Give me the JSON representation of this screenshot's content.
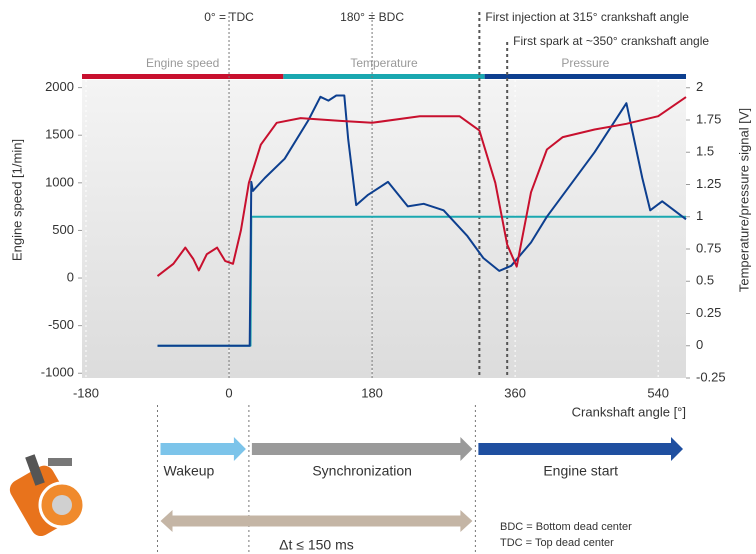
{
  "chart_data": {
    "type": "line",
    "xlabel": "Crankshaft angle [°]",
    "ylabel": "Engine speed [1/min]",
    "y2label": "Temperature/pressure signal [V]",
    "xlim": [
      -185,
      575
    ],
    "xticks": [
      -180,
      0,
      180,
      360,
      540
    ],
    "ylim": [
      -1050,
      2080
    ],
    "yticks": [
      2000,
      1500,
      1000,
      500,
      0,
      -500,
      -1000
    ],
    "y2lim": [
      -0.25,
      2.06
    ],
    "y2ticks": [
      2,
      1.75,
      1.5,
      1.25,
      1,
      0.75,
      0.5,
      0.25,
      0,
      -0.25
    ],
    "grid": true,
    "series": [
      {
        "name": "Engine speed",
        "color": "#c8102e",
        "axis": "y",
        "x": [
          -90,
          -70,
          -55,
          -45,
          -38,
          -28,
          -15,
          -5,
          5,
          15,
          25,
          40,
          60,
          90,
          140,
          180,
          240,
          290,
          315,
          335,
          350,
          362,
          380,
          400,
          420,
          460,
          500,
          540,
          575
        ],
        "values": [
          20,
          150,
          320,
          200,
          80,
          250,
          320,
          180,
          150,
          500,
          1000,
          1400,
          1630,
          1680,
          1650,
          1630,
          1700,
          1700,
          1550,
          1000,
          350,
          120,
          900,
          1350,
          1480,
          1560,
          1620,
          1700,
          1900
        ]
      },
      {
        "name": "Temperature",
        "color": "#1aa8b0",
        "axis": "y2",
        "x": [
          -90,
          27,
          28,
          575
        ],
        "values": [
          0,
          0,
          1,
          1
        ]
      },
      {
        "name": "Pressure",
        "color": "#0d3f8f",
        "axis": "y2",
        "x": [
          -90,
          26,
          28,
          30,
          45,
          70,
          100,
          115,
          125,
          135,
          145,
          150,
          160,
          175,
          200,
          225,
          245,
          270,
          300,
          320,
          340,
          355,
          380,
          400,
          460,
          500,
          520,
          530,
          545,
          560,
          575
        ],
        "values": [
          0,
          0,
          1.27,
          1.2,
          1.3,
          1.45,
          1.75,
          1.93,
          1.9,
          1.94,
          1.94,
          1.6,
          1.09,
          1.17,
          1.27,
          1.08,
          1.1,
          1.05,
          0.85,
          0.68,
          0.58,
          0.62,
          0.8,
          1.0,
          1.5,
          1.88,
          1.3,
          1.05,
          1.12,
          1.05,
          0.98
        ]
      }
    ],
    "markers": [
      {
        "x": 0,
        "label": "0° = TDC"
      },
      {
        "x": 180,
        "label": "180° = BDC"
      },
      {
        "x": 315,
        "label": "First injection at 315° crankshaft angle"
      },
      {
        "x": 350,
        "label": "First spark at ~350° crankshaft angle"
      }
    ],
    "phases": [
      {
        "label": "Wakeup",
        "from": -90,
        "to": 25,
        "color": "#7cc4ea"
      },
      {
        "label": "Synchronization",
        "from": 25,
        "to": 310,
        "color": "#9a9a9a"
      },
      {
        "label": "Engine start",
        "from": 310,
        "to": 575,
        "color": "#1f4fa0"
      }
    ],
    "duration": {
      "label": "Δt ≤ 150 ms",
      "from": -90,
      "to": 310,
      "color": "#c4b5a5"
    },
    "notes": [
      "BDC = Bottom dead center",
      "TDC = Top dead center"
    ]
  }
}
